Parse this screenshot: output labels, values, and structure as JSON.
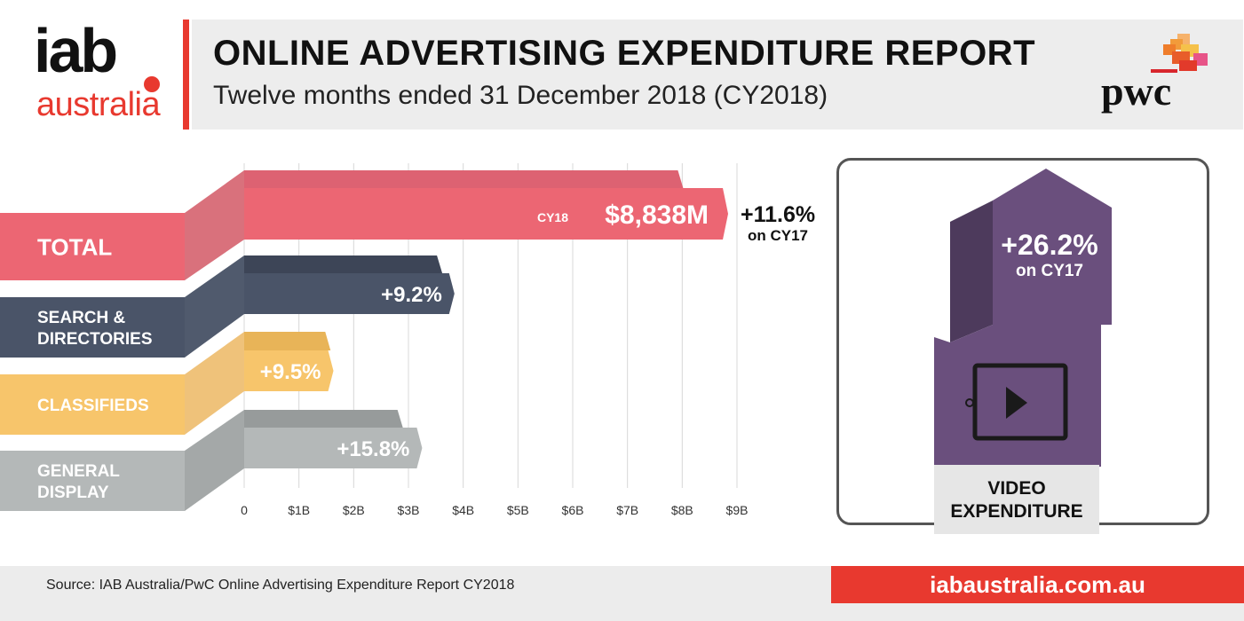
{
  "brand": {
    "logo_main": "iab",
    "logo_sub": "australia",
    "partner": "pwc",
    "accent_red": "#e8392f"
  },
  "header": {
    "title": "ONLINE ADVERTISING EXPENDITURE REPORT",
    "subtitle": "Twelve months ended 31 December 2018 (CY2018)"
  },
  "chart_data": {
    "type": "bar",
    "orientation": "horizontal",
    "units": "$B",
    "xlim": [
      0,
      9
    ],
    "x_ticks": [
      "0",
      "$1B",
      "$2B",
      "$3B",
      "$4B",
      "$5B",
      "$6B",
      "$7B",
      "$8B",
      "$9B"
    ],
    "grid": true,
    "series": [
      {
        "category": "TOTAL",
        "lines": [
          "TOTAL"
        ],
        "value": 8.838,
        "back_value": 7.92,
        "label_prefix": "CY18",
        "label_value": "$8,838M",
        "color": "#ec6673",
        "back_color": "#dd6272",
        "fold_color": "#d9717c"
      },
      {
        "category": "SEARCH & DIRECTORIES",
        "lines": [
          "SEARCH &",
          "DIRECTORIES"
        ],
        "value": 3.84,
        "back_value": 3.52,
        "label": "+9.2%",
        "color": "#4a5468",
        "back_color": "#3d4557",
        "fold_color": "#505a6d"
      },
      {
        "category": "CLASSIFIEDS",
        "lines": [
          "CLASSIFIEDS"
        ],
        "value": 1.63,
        "back_value": 1.48,
        "label": "+9.5%",
        "color": "#f7c56b",
        "back_color": "#e8b458",
        "fold_color": "#efc27a"
      },
      {
        "category": "GENERAL DISPLAY",
        "lines": [
          "GENERAL",
          "DISPLAY"
        ],
        "value": 3.25,
        "back_value": 2.8,
        "label": "+15.8%",
        "color": "#b4b8b8",
        "back_color": "#979b9b",
        "fold_color": "#a4a8a8"
      }
    ],
    "total_growth": {
      "value": "+11.6%",
      "basis": "on CY17"
    }
  },
  "video": {
    "growth": "+26.2%",
    "basis": "on CY17",
    "caption_line1": "VIDEO",
    "caption_line2": "EXPENDITURE",
    "color_front": "#6a4f7d",
    "color_side": "#4d3a5c"
  },
  "footer": {
    "source": "Source: IAB Australia/PwC Online Advertising Expenditure Report CY2018",
    "url": "iabaustralia.com.au"
  }
}
